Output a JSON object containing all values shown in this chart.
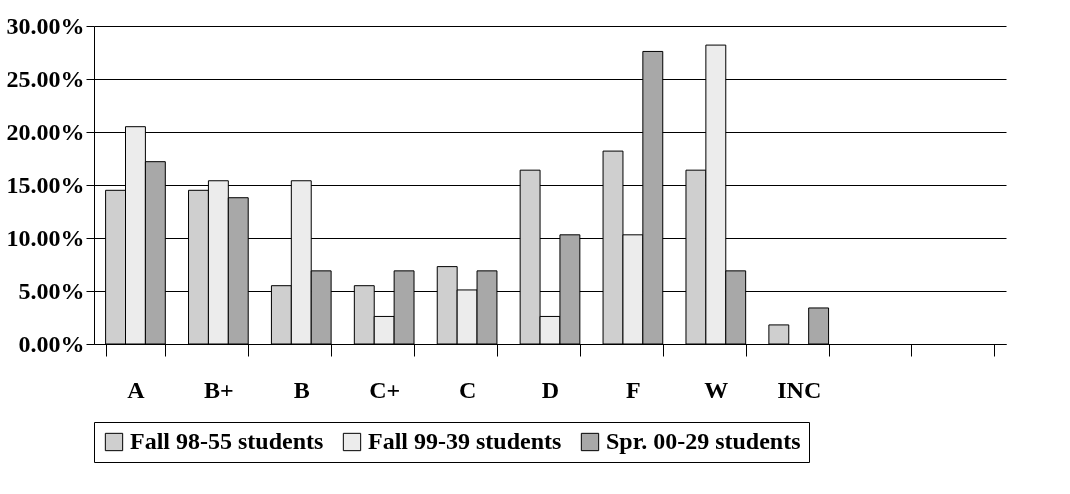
{
  "chart_data": {
    "type": "bar",
    "categories": [
      "A",
      "B+",
      "B",
      "C+",
      "C",
      "D",
      "F",
      "W",
      "INC",
      null,
      null
    ],
    "series": [
      {
        "name": "Fall 98-55 students",
        "color": "#cfcfcf",
        "values": [
          14.5,
          14.5,
          5.5,
          5.5,
          7.3,
          16.4,
          18.2,
          16.4,
          1.8,
          null,
          null
        ]
      },
      {
        "name": "Fall 99-39 students",
        "color": "#ececec",
        "values": [
          20.5,
          15.4,
          15.4,
          2.6,
          5.1,
          2.6,
          10.3,
          28.2,
          null,
          null,
          null
        ]
      },
      {
        "name": "Spr. 00-29 students",
        "color": "#a8a8a8",
        "values": [
          17.2,
          13.8,
          6.9,
          6.9,
          6.9,
          10.3,
          27.6,
          6.9,
          3.4,
          null,
          null
        ]
      }
    ],
    "ylim": [
      0,
      30
    ],
    "yticks": [
      {
        "value": 0,
        "label": "0.00%"
      },
      {
        "value": 5,
        "label": "5.00%"
      },
      {
        "value": 10,
        "label": "10.00%"
      },
      {
        "value": 15,
        "label": "15.00%"
      },
      {
        "value": 20,
        "label": "20.00%"
      },
      {
        "value": 25,
        "label": "25.00%"
      },
      {
        "value": 30,
        "label": "30.00%"
      }
    ],
    "grid": "y",
    "legend": "bottom"
  }
}
